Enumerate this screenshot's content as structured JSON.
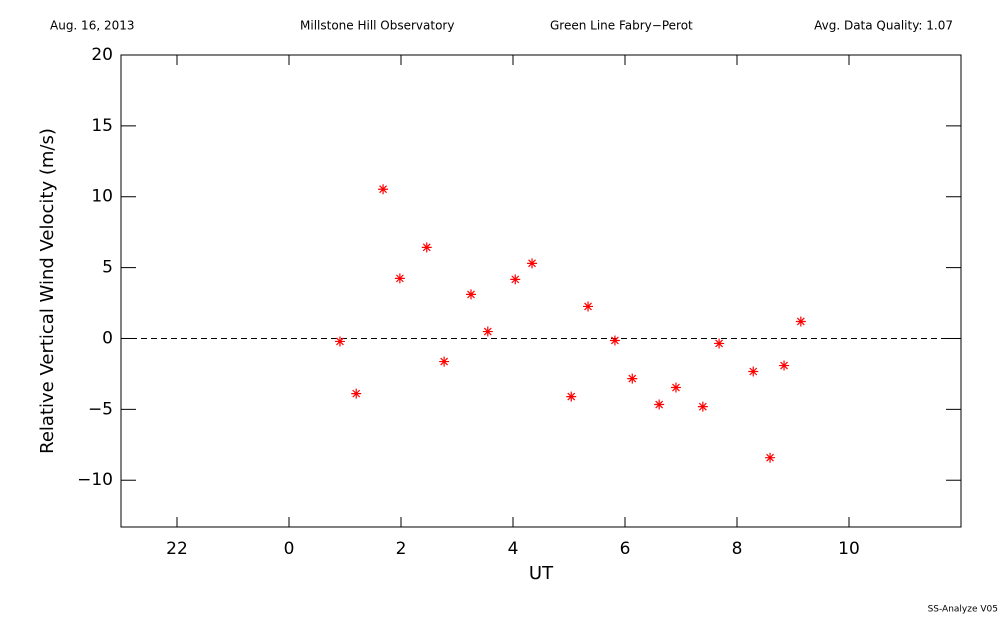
{
  "chart_data": {
    "type": "scatter",
    "header": [
      "Aug. 16, 2013",
      "Millstone Hill Observatory",
      "Green Line Fabry−Perot",
      "Avg. Data Quality: 1.07"
    ],
    "footer": "SS-Analyze V05",
    "x_label": "UT",
    "y_label": "Relative Vertical Wind Velocity (m/s)",
    "xlim": [
      -3,
      12
    ],
    "ylim": [
      -13.3,
      20
    ],
    "xticks": [
      {
        "value": -2,
        "label": "22"
      },
      0,
      2,
      4,
      6,
      8,
      10
    ],
    "yticks": [
      {
        "value": -10,
        "label": "−10"
      },
      {
        "value": -5,
        "label": "−5"
      },
      0,
      5,
      10,
      15,
      20
    ],
    "reference_line": 0,
    "series": [
      {
        "color": "#ff0000",
        "x": [
          0.91,
          1.2,
          1.68,
          1.98,
          2.46,
          2.77,
          3.25,
          3.55,
          4.04,
          4.34,
          5.04,
          5.34,
          5.82,
          6.13,
          6.61,
          6.91,
          7.39,
          7.68,
          8.29,
          8.59,
          8.84,
          9.14
        ],
        "values": [
          -0.21,
          -3.89,
          10.53,
          4.24,
          6.43,
          -1.63,
          3.11,
          0.49,
          4.17,
          5.3,
          -4.1,
          2.26,
          -0.14,
          -2.83,
          -4.66,
          -3.46,
          -4.81,
          -0.35,
          -2.33,
          -8.41,
          -1.91,
          1.2
        ]
      }
    ]
  }
}
